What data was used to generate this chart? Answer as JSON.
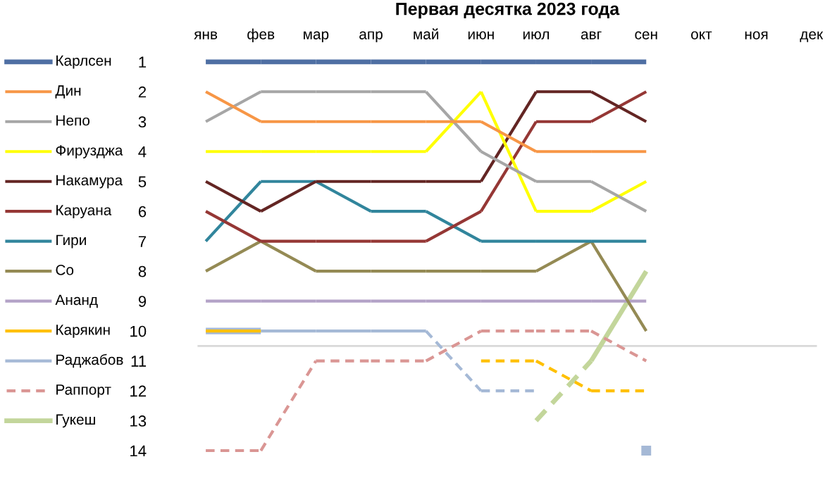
{
  "chart_data": {
    "type": "line",
    "title": "Первая десятка 2023 года",
    "categories": [
      "янв",
      "фев",
      "мар",
      "апр",
      "май",
      "июн",
      "июл",
      "авг",
      "сен",
      "окт",
      "ноя",
      "дек"
    ],
    "ylim": [
      14,
      1
    ],
    "yticks": [
      1,
      2,
      3,
      4,
      5,
      6,
      7,
      8,
      9,
      10,
      11,
      12,
      13,
      14
    ],
    "grid": false,
    "legend": "left",
    "marker": "none",
    "line_style": "solid",
    "ref_lines": [
      {
        "axis": "y",
        "value": 10.5,
        "color": "#d9d9d9"
      }
    ],
    "series": [
      {
        "name": "Карлсен",
        "color": "#4f6fa3",
        "values": [
          1,
          1,
          1,
          1,
          1,
          1,
          1,
          1,
          1,
          null,
          null,
          null
        ]
      },
      {
        "name": "Дин",
        "color": "#f79646",
        "values": [
          2,
          3,
          3,
          3,
          3,
          3,
          4,
          4,
          4,
          null,
          null,
          null
        ]
      },
      {
        "name": "Непо",
        "color": "#a6a6a6",
        "values": [
          3,
          2,
          2,
          2,
          2,
          4,
          5,
          5,
          6,
          null,
          null,
          null
        ]
      },
      {
        "name": "Фирузджа",
        "color": "#ffff00",
        "values": [
          4,
          4,
          4,
          4,
          4,
          2,
          6,
          6,
          5,
          null,
          null,
          null
        ]
      },
      {
        "name": "Накамура",
        "color": "#632523",
        "values": [
          5,
          6,
          5,
          5,
          5,
          5,
          2,
          2,
          3,
          null,
          null,
          null
        ]
      },
      {
        "name": "Каруана",
        "color": "#953735",
        "values": [
          6,
          7,
          7,
          7,
          7,
          6,
          3,
          3,
          2,
          null,
          null,
          null
        ]
      },
      {
        "name": "Гири",
        "color": "#31859c",
        "values": [
          7,
          5,
          5,
          6,
          6,
          7,
          7,
          7,
          7,
          null,
          null,
          null
        ]
      },
      {
        "name": "Со",
        "color": "#948a54",
        "values": [
          8,
          7,
          8,
          8,
          8,
          8,
          8,
          7,
          10,
          null,
          null,
          null
        ]
      },
      {
        "name": "Ананд",
        "color": "#b3a2c7",
        "values": [
          9,
          9,
          9,
          9,
          9,
          9,
          9,
          9,
          9,
          null,
          null,
          null
        ]
      },
      {
        "name": "Карякин",
        "color": "#ffc000",
        "values": [
          10,
          10,
          null,
          null,
          null,
          11,
          11,
          12,
          12,
          null,
          null,
          null
        ]
      },
      {
        "name": "Раджабов",
        "color": "#a5b9d6",
        "values": [
          10,
          10,
          10,
          10,
          10,
          12,
          12,
          null,
          14,
          null,
          null,
          null
        ]
      },
      {
        "name": "Раппорт",
        "color": "#da9694",
        "line_style": "dashed",
        "values": [
          14,
          14,
          11,
          11,
          11,
          10,
          10,
          10,
          11,
          null,
          null,
          null
        ]
      },
      {
        "name": "Гукеш",
        "color": "#c3d69b",
        "values": [
          null,
          null,
          null,
          null,
          null,
          null,
          13,
          11,
          8,
          null,
          null,
          null
        ]
      }
    ]
  }
}
